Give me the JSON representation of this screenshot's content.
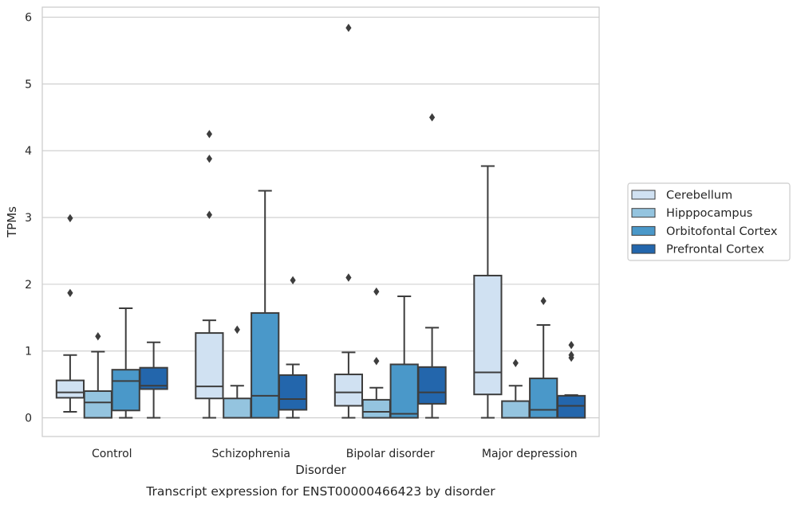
{
  "chart_data": {
    "type": "box",
    "xlabel": "Disorder",
    "ylabel": "TPMs",
    "caption": "Transcript expression for ENST00000466423 by disorder",
    "ylim": [
      -0.28,
      6.15
    ],
    "yticks": [
      0,
      1,
      2,
      3,
      4,
      5,
      6
    ],
    "grid": true,
    "legend_position": "right",
    "categories": [
      "Control",
      "Schizophrenia",
      "Bipolar disorder",
      "Major depression"
    ],
    "series": [
      {
        "name": "Cerebellum",
        "color": "#d0e1f2",
        "boxes": [
          {
            "whislo": 0.09,
            "q1": 0.3,
            "med": 0.38,
            "q3": 0.56,
            "whishi": 0.94,
            "fliers": [
              1.87,
              2.99
            ]
          },
          {
            "whislo": 0.0,
            "q1": 0.29,
            "med": 0.47,
            "q3": 1.27,
            "whishi": 1.46,
            "fliers": [
              3.04,
              3.88,
              4.25
            ]
          },
          {
            "whislo": 0.0,
            "q1": 0.18,
            "med": 0.38,
            "q3": 0.65,
            "whishi": 0.98,
            "fliers": [
              2.1,
              5.84
            ]
          },
          {
            "whislo": 0.0,
            "q1": 0.35,
            "med": 0.68,
            "q3": 2.13,
            "whishi": 3.77,
            "fliers": []
          }
        ]
      },
      {
        "name": "Hipppocampus",
        "color": "#94c4df",
        "boxes": [
          {
            "whislo": 0.0,
            "q1": 0.0,
            "med": 0.23,
            "q3": 0.4,
            "whishi": 0.99,
            "fliers": [
              1.22
            ]
          },
          {
            "whislo": 0.0,
            "q1": 0.0,
            "med": 0.0,
            "q3": 0.29,
            "whishi": 0.48,
            "fliers": [
              1.32
            ]
          },
          {
            "whislo": 0.0,
            "q1": 0.0,
            "med": 0.09,
            "q3": 0.27,
            "whishi": 0.45,
            "fliers": [
              0.85,
              1.89
            ]
          },
          {
            "whislo": 0.0,
            "q1": 0.0,
            "med": 0.0,
            "q3": 0.25,
            "whishi": 0.48,
            "fliers": [
              0.82
            ]
          }
        ]
      },
      {
        "name": "Orbitofontal Cortex",
        "color": "#4a98c9",
        "boxes": [
          {
            "whislo": 0.0,
            "q1": 0.11,
            "med": 0.55,
            "q3": 0.72,
            "whishi": 1.64,
            "fliers": []
          },
          {
            "whislo": 0.0,
            "q1": 0.0,
            "med": 0.33,
            "q3": 1.57,
            "whishi": 3.4,
            "fliers": []
          },
          {
            "whislo": 0.0,
            "q1": 0.0,
            "med": 0.06,
            "q3": 0.8,
            "whishi": 1.82,
            "fliers": []
          },
          {
            "whislo": 0.0,
            "q1": 0.0,
            "med": 0.12,
            "q3": 0.59,
            "whishi": 1.39,
            "fliers": [
              1.75
            ]
          }
        ]
      },
      {
        "name": "Prefrontal Cortex",
        "color": "#2366ac",
        "boxes": [
          {
            "whislo": 0.0,
            "q1": 0.43,
            "med": 0.48,
            "q3": 0.75,
            "whishi": 1.13,
            "fliers": []
          },
          {
            "whislo": 0.0,
            "q1": 0.12,
            "med": 0.28,
            "q3": 0.64,
            "whishi": 0.8,
            "fliers": [
              2.06
            ]
          },
          {
            "whislo": 0.0,
            "q1": 0.21,
            "med": 0.38,
            "q3": 0.76,
            "whishi": 1.35,
            "fliers": [
              4.5
            ]
          },
          {
            "whislo": 0.0,
            "q1": 0.0,
            "med": 0.18,
            "q3": 0.33,
            "whishi": 0.34,
            "fliers": [
              0.9,
              0.94,
              1.09
            ]
          }
        ]
      }
    ]
  }
}
